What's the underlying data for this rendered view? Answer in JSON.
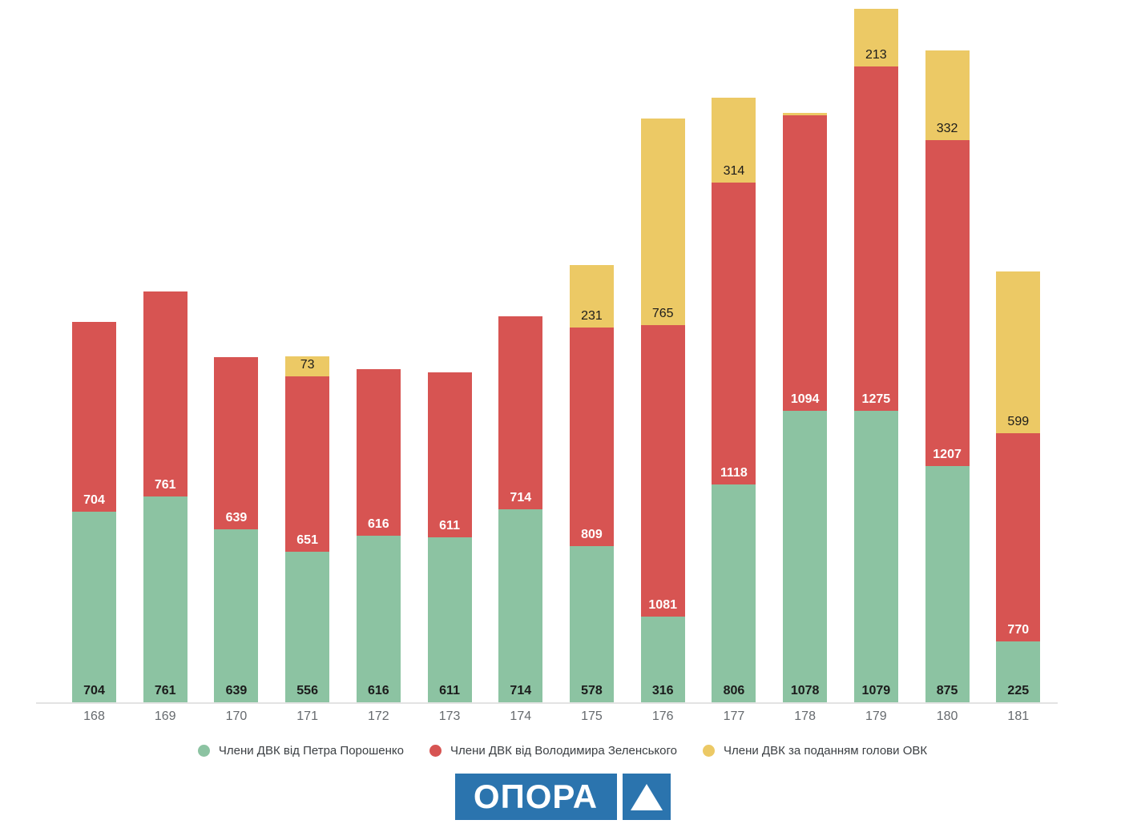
{
  "chart_data": {
    "type": "bar",
    "stacked": true,
    "title": "",
    "xlabel": "",
    "ylabel": "",
    "ylim": [
      0,
      2567
    ],
    "grid": false,
    "legend_position": "bottom",
    "categories": [
      "168",
      "169",
      "170",
      "171",
      "172",
      "173",
      "174",
      "175",
      "176",
      "177",
      "178",
      "179",
      "180",
      "181"
    ],
    "series": [
      {
        "name": "Члени ДВК від Петра Порошенко",
        "color": "#8cc3a2",
        "label_color": "#1b1b1b",
        "label_weight": "bold",
        "values": [
          704,
          761,
          639,
          556,
          616,
          611,
          714,
          578,
          316,
          806,
          1078,
          1079,
          875,
          225
        ],
        "labels": [
          "704",
          "761",
          "639",
          "556",
          "616",
          "611",
          "714",
          "578",
          "316",
          "806",
          "1078",
          "1079",
          "875",
          "225"
        ]
      },
      {
        "name": "Члени ДВК від Володимира Зеленського",
        "color": "#d75452",
        "label_color": "#ffffff",
        "label_weight": "bold",
        "values": [
          704,
          761,
          639,
          651,
          616,
          611,
          714,
          809,
          1081,
          1118,
          1094,
          1275,
          1207,
          770
        ],
        "labels": [
          "704",
          "761",
          "639",
          "651",
          "616",
          "611",
          "714",
          "809",
          "1081",
          "1118",
          "1094",
          "1275",
          "1207",
          "770"
        ]
      },
      {
        "name": "Члени ДВК за поданням голови ОВК",
        "color": "#ecc965",
        "label_color": "#1b1b1b",
        "label_weight": "medium",
        "values": [
          0,
          0,
          0,
          73,
          0,
          0,
          0,
          231,
          765,
          314,
          10,
          213,
          332,
          599
        ],
        "labels": [
          "",
          "",
          "",
          "73",
          "",
          "",
          "",
          "231",
          "765",
          "314",
          "",
          "213",
          "332",
          "599"
        ]
      }
    ]
  },
  "legend": {
    "items": [
      {
        "label": "Члени ДВК від Петра Порошенко",
        "color": "#8cc3a2"
      },
      {
        "label": "Члени ДВК від Володимира Зеленського",
        "color": "#d75452"
      },
      {
        "label": "Члени ДВК за поданням голови ОВК",
        "color": "#ecc965"
      }
    ]
  },
  "logo": {
    "text": "ОПОРА",
    "brand_color": "#2b74ae"
  },
  "colors": {
    "green": "#8cc3a2",
    "red": "#d75452",
    "yellow": "#ecc965",
    "axis_line": "#e3e3e3",
    "category_text": "#666a6e",
    "logo_blue": "#2b74ae"
  }
}
